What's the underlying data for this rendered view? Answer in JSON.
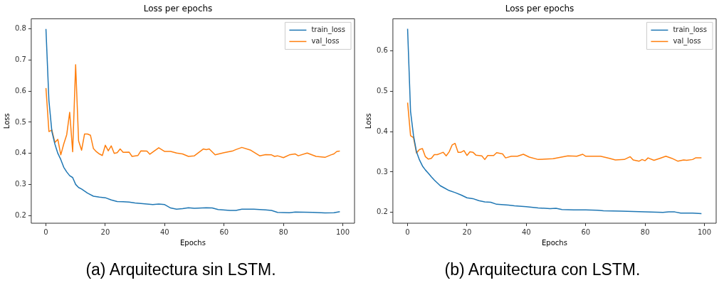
{
  "chart_data": [
    {
      "type": "line",
      "title": "Loss per epochs",
      "xlabel": "Epochs",
      "ylabel": "Loss",
      "legend": "top right",
      "xlim": [
        -4.95,
        103.95
      ],
      "ylim": [
        0.175,
        0.833
      ],
      "xticks": [
        0,
        20,
        40,
        60,
        80,
        100
      ],
      "yticks": [
        0.2,
        0.3,
        0.4,
        0.5,
        0.6,
        0.7,
        0.8
      ],
      "annotations": [
        "(a) Arquitectura sin LSTM."
      ],
      "series": [
        {
          "name": "train_loss",
          "color": "#1f77b4",
          "x": [
            0,
            1,
            2,
            3,
            4,
            5,
            6,
            7,
            8,
            9,
            10,
            11,
            12,
            14,
            16,
            18,
            20,
            22,
            24,
            26,
            28,
            30,
            34,
            36,
            38,
            40,
            42,
            44,
            46,
            48,
            50,
            54,
            56,
            58,
            62,
            64,
            66,
            70,
            74,
            76,
            78,
            82,
            84,
            90,
            94,
            97,
            99
          ],
          "values": [
            0.8,
            0.57,
            0.47,
            0.43,
            0.4,
            0.38,
            0.355,
            0.34,
            0.328,
            0.322,
            0.3,
            0.29,
            0.285,
            0.272,
            0.262,
            0.259,
            0.257,
            0.25,
            0.245,
            0.244,
            0.243,
            0.24,
            0.237,
            0.235,
            0.237,
            0.235,
            0.224,
            0.22,
            0.222,
            0.225,
            0.223,
            0.225,
            0.224,
            0.219,
            0.216,
            0.216,
            0.22,
            0.22,
            0.218,
            0.216,
            0.21,
            0.209,
            0.211,
            0.21,
            0.208,
            0.209,
            0.212
          ]
        },
        {
          "name": "val_loss",
          "color": "#ff7f0e",
          "x": [
            0,
            1,
            2,
            3,
            4,
            5,
            6,
            7,
            8,
            9,
            10,
            11,
            12,
            13,
            14,
            15,
            16,
            17,
            18,
            19,
            20,
            21,
            22,
            23,
            24,
            25,
            26,
            28,
            29,
            31,
            32,
            34,
            35,
            36,
            38,
            40,
            42,
            44,
            46,
            48,
            50,
            53,
            54,
            55,
            57,
            60,
            63,
            64,
            66,
            69,
            72,
            74,
            76,
            77,
            78,
            80,
            82,
            84,
            85,
            88,
            91,
            94,
            96,
            97,
            98,
            99
          ],
          "values": [
            0.61,
            0.47,
            0.475,
            0.435,
            0.445,
            0.395,
            0.43,
            0.46,
            0.532,
            0.405,
            0.685,
            0.44,
            0.41,
            0.462,
            0.462,
            0.458,
            0.415,
            0.405,
            0.398,
            0.393,
            0.426,
            0.408,
            0.424,
            0.4,
            0.402,
            0.414,
            0.403,
            0.404,
            0.39,
            0.393,
            0.408,
            0.407,
            0.397,
            0.404,
            0.418,
            0.406,
            0.406,
            0.401,
            0.398,
            0.39,
            0.392,
            0.414,
            0.412,
            0.414,
            0.395,
            0.402,
            0.408,
            0.412,
            0.419,
            0.41,
            0.392,
            0.396,
            0.395,
            0.39,
            0.392,
            0.386,
            0.395,
            0.398,
            0.392,
            0.401,
            0.39,
            0.387,
            0.395,
            0.398,
            0.406,
            0.407
          ]
        }
      ]
    },
    {
      "type": "line",
      "title": "Loss per epochs",
      "xlabel": "Epochs",
      "ylabel": "Loss",
      "legend": "top right",
      "xlim": [
        -4.95,
        103.95
      ],
      "ylim": [
        0.173,
        0.68
      ],
      "xticks": [
        0,
        20,
        40,
        60,
        80,
        100
      ],
      "yticks": [
        0.2,
        0.3,
        0.4,
        0.5,
        0.6
      ],
      "annotations": [
        "(b) Arquitectura con LSTM."
      ],
      "series": [
        {
          "name": "train_loss",
          "color": "#1f77b4",
          "x": [
            0,
            1,
            2,
            3,
            4,
            5,
            6,
            7,
            8,
            9,
            10,
            11,
            12,
            14,
            16,
            18,
            20,
            22,
            24,
            26,
            28,
            30,
            34,
            36,
            40,
            44,
            48,
            50,
            52,
            56,
            60,
            64,
            66,
            72,
            76,
            80,
            86,
            88,
            90,
            92,
            96,
            99
          ],
          "values": [
            0.655,
            0.45,
            0.39,
            0.35,
            0.33,
            0.315,
            0.305,
            0.297,
            0.288,
            0.28,
            0.273,
            0.266,
            0.262,
            0.254,
            0.249,
            0.243,
            0.236,
            0.234,
            0.229,
            0.226,
            0.225,
            0.22,
            0.218,
            0.216,
            0.214,
            0.211,
            0.209,
            0.21,
            0.207,
            0.206,
            0.206,
            0.205,
            0.204,
            0.203,
            0.202,
            0.201,
            0.2,
            0.201,
            0.201,
            0.198,
            0.198,
            0.197
          ]
        },
        {
          "name": "val_loss",
          "color": "#ff7f0e",
          "x": [
            0,
            1,
            2,
            3,
            4,
            5,
            6,
            7,
            8,
            9,
            10,
            11,
            12,
            13,
            14,
            15,
            16,
            17,
            18,
            19,
            20,
            21,
            22,
            23,
            25,
            26,
            27,
            29,
            30,
            32,
            33,
            35,
            37,
            39,
            41,
            44,
            49,
            54,
            57,
            59,
            60,
            65,
            68,
            70,
            73,
            75,
            76,
            78,
            79,
            80,
            81,
            83,
            85,
            87,
            89,
            91,
            93,
            94,
            96,
            97,
            99
          ],
          "values": [
            0.472,
            0.39,
            0.385,
            0.347,
            0.356,
            0.358,
            0.338,
            0.332,
            0.334,
            0.343,
            0.343,
            0.346,
            0.349,
            0.34,
            0.35,
            0.367,
            0.371,
            0.349,
            0.349,
            0.353,
            0.341,
            0.35,
            0.349,
            0.342,
            0.34,
            0.331,
            0.341,
            0.341,
            0.348,
            0.345,
            0.335,
            0.339,
            0.339,
            0.344,
            0.337,
            0.331,
            0.333,
            0.34,
            0.339,
            0.344,
            0.339,
            0.339,
            0.334,
            0.33,
            0.331,
            0.338,
            0.33,
            0.327,
            0.331,
            0.328,
            0.335,
            0.329,
            0.334,
            0.339,
            0.334,
            0.327,
            0.33,
            0.329,
            0.331,
            0.335,
            0.335
          ]
        }
      ]
    }
  ]
}
